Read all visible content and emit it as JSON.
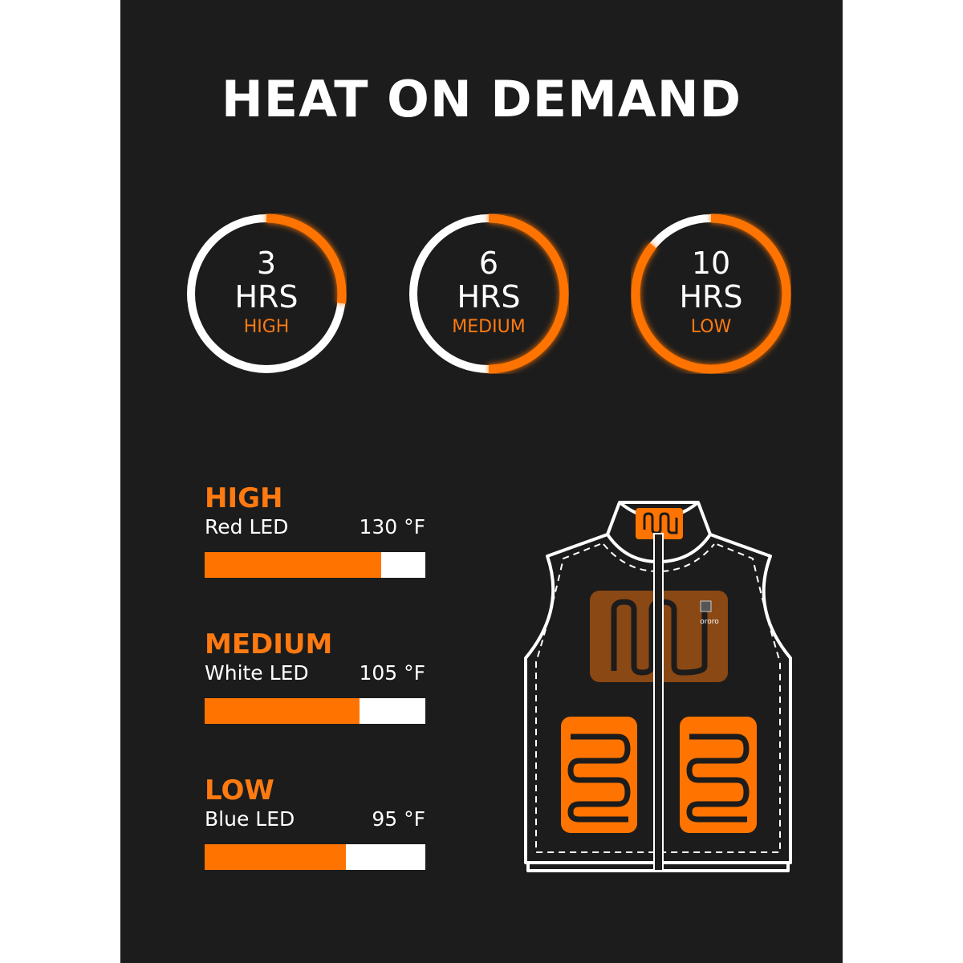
{
  "title": "HEAT ON DEMAND",
  "colors": {
    "accent": "#ff7400",
    "background": "#1c1c1c",
    "track": "#ffffff"
  },
  "runtimes": [
    {
      "hours": "3",
      "unit": "HRS",
      "level": "HIGH",
      "arc_fraction": 0.27
    },
    {
      "hours": "6",
      "unit": "HRS",
      "level": "MEDIUM",
      "arc_fraction": 0.5
    },
    {
      "hours": "10",
      "unit": "HRS",
      "level": "LOW",
      "arc_fraction": 0.86
    }
  ],
  "levels": [
    {
      "name": "HIGH",
      "led": "Red LED",
      "temp": "130 °F",
      "fill_fraction": 0.8
    },
    {
      "name": "MEDIUM",
      "led": "White LED",
      "temp": "105 °F",
      "fill_fraction": 0.7
    },
    {
      "name": "LOW",
      "led": "Blue LED",
      "temp": "95 °F",
      "fill_fraction": 0.64
    }
  ],
  "vest": {
    "brand_logo": "ororo",
    "heating_zones": [
      "collar",
      "upper-back",
      "left-pocket",
      "right-pocket"
    ]
  }
}
